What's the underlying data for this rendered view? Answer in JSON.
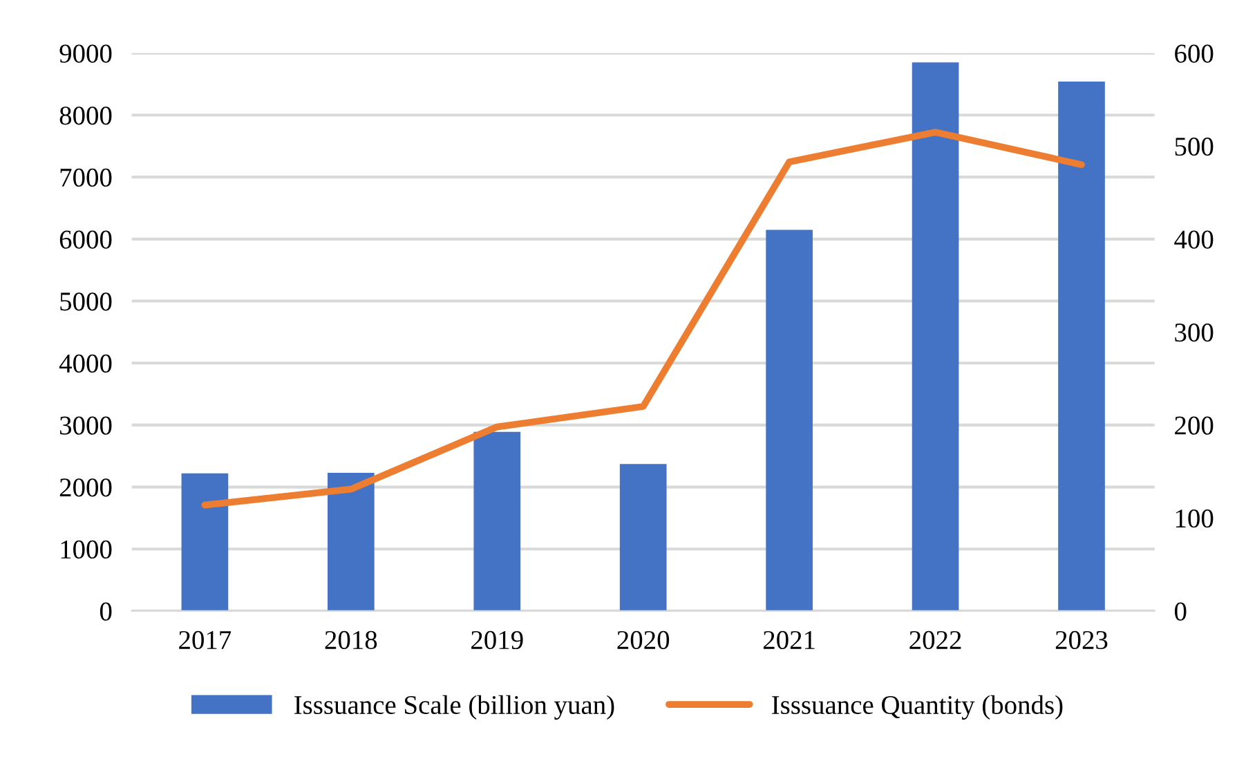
{
  "chart_data": {
    "type": "bar",
    "categories": [
      "2017",
      "2018",
      "2019",
      "2020",
      "2021",
      "2022",
      "2023"
    ],
    "series": [
      {
        "name": "Isssuance Scale (billion yuan)",
        "color": "#4472c4",
        "values": [
          2220,
          2230,
          2890,
          2370,
          6150,
          8850,
          8540
        ]
      },
      {
        "name": "Isssuance Quantity (bonds)",
        "type": "line",
        "axis": "y2",
        "color": "#ed7d31",
        "values": [
          114,
          131,
          198,
          220,
          483,
          515,
          480
        ]
      }
    ],
    "ylim": [
      0,
      9000
    ],
    "yticks": [
      0,
      1000,
      2000,
      3000,
      4000,
      5000,
      6000,
      7000,
      8000,
      9000
    ],
    "y2lim": [
      0,
      600
    ],
    "y2ticks": [
      0,
      100,
      200,
      300,
      400,
      500,
      600
    ],
    "grid": "y",
    "legend": "bottom",
    "marker": "none",
    "line_style": "solid"
  }
}
